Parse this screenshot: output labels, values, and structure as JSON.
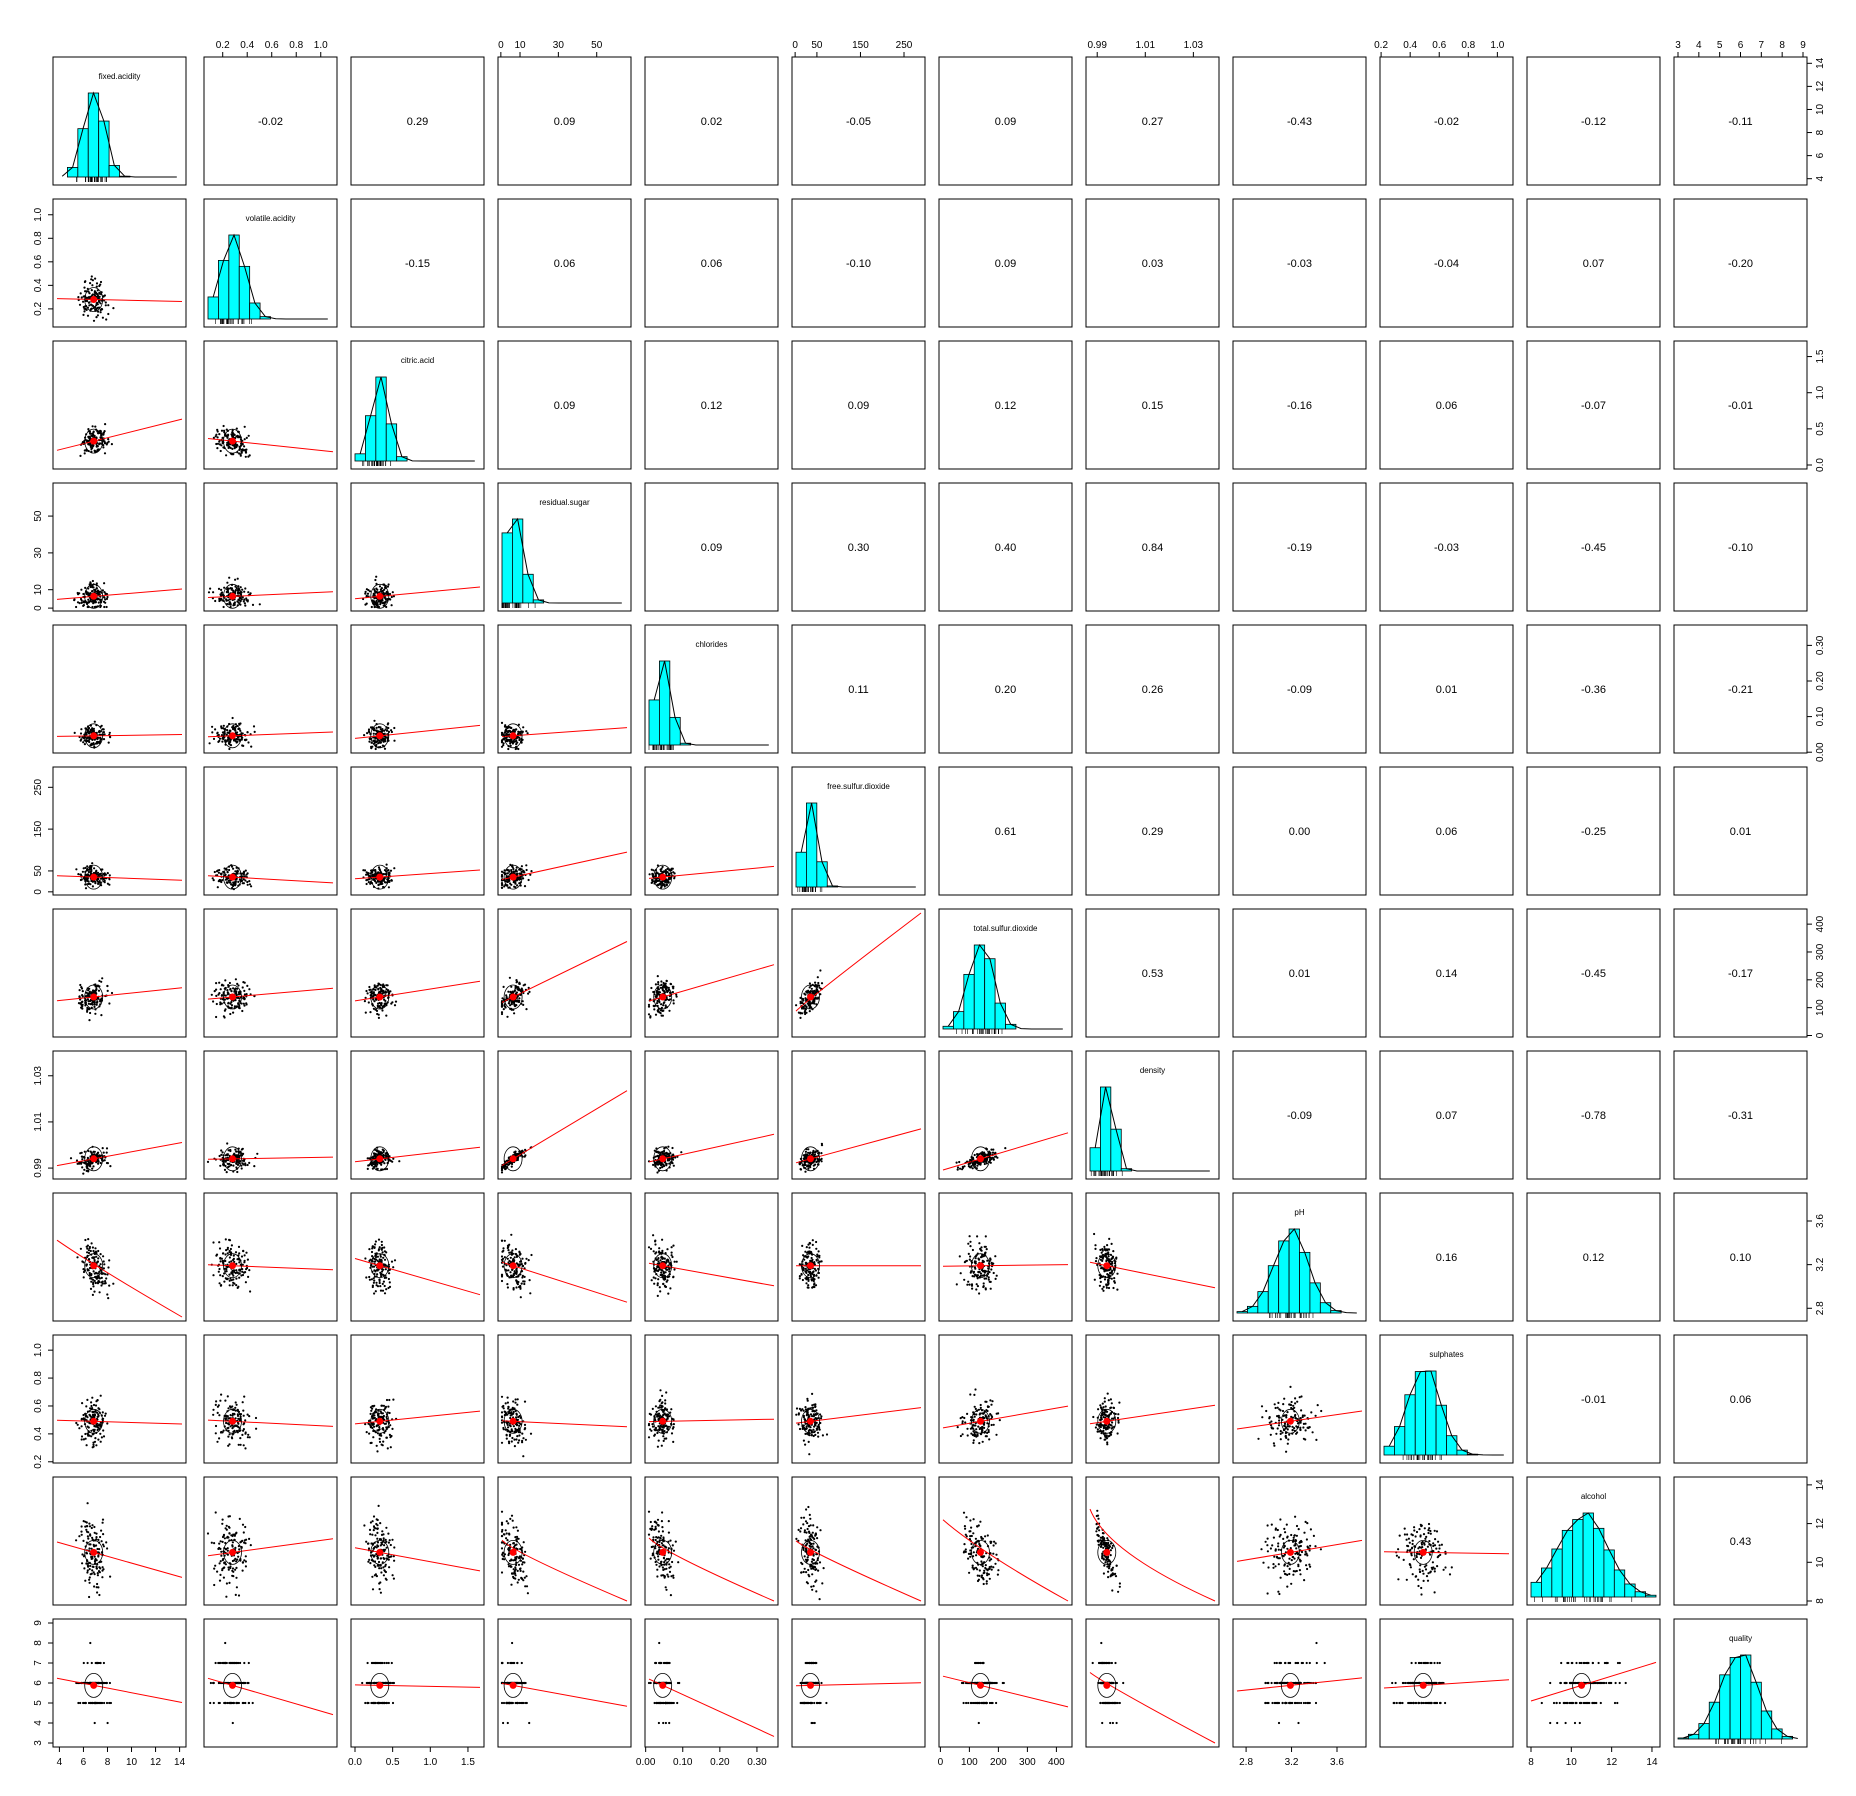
{
  "chart_data": {
    "type": "scatter-matrix",
    "title": "",
    "variables": [
      "fixed.acidity",
      "volatile.acidity",
      "citric.acid",
      "residual.sugar",
      "chlorides",
      "free.sulfur.dioxide",
      "total.sulfur.dioxide",
      "density",
      "pH",
      "sulphates",
      "alcohol",
      "quality"
    ],
    "diagonal": "histogram",
    "upper": "correlation",
    "lower": "scatter with loess line and data ellipse",
    "correlations": [
      [
        null,
        -0.02,
        0.29,
        0.09,
        0.02,
        -0.05,
        0.09,
        0.27,
        -0.43,
        -0.02,
        -0.12,
        -0.11
      ],
      [
        null,
        null,
        -0.15,
        0.06,
        0.06,
        -0.1,
        0.09,
        0.03,
        -0.03,
        -0.04,
        0.07,
        -0.2
      ],
      [
        null,
        null,
        null,
        0.09,
        0.12,
        0.09,
        0.12,
        0.15,
        -0.16,
        0.06,
        -0.07,
        -0.01
      ],
      [
        null,
        null,
        null,
        null,
        0.09,
        0.3,
        0.4,
        0.84,
        -0.19,
        -0.03,
        -0.45,
        -0.1
      ],
      [
        null,
        null,
        null,
        null,
        null,
        0.11,
        0.2,
        0.26,
        -0.09,
        0.01,
        -0.36,
        -0.21
      ],
      [
        null,
        null,
        null,
        null,
        null,
        null,
        0.61,
        0.29,
        0.0,
        0.06,
        -0.25,
        0.01
      ],
      [
        null,
        null,
        null,
        null,
        null,
        null,
        null,
        0.53,
        0.01,
        0.14,
        -0.45,
        -0.17
      ],
      [
        null,
        null,
        null,
        null,
        null,
        null,
        null,
        null,
        -0.09,
        0.07,
        -0.78,
        -0.31
      ],
      [
        null,
        null,
        null,
        null,
        null,
        null,
        null,
        null,
        null,
        0.16,
        0.12,
        0.1
      ],
      [
        null,
        null,
        null,
        null,
        null,
        null,
        null,
        null,
        null,
        null,
        -0.01,
        0.06
      ],
      [
        null,
        null,
        null,
        null,
        null,
        null,
        null,
        null,
        null,
        null,
        null,
        0.43
      ],
      [
        null,
        null,
        null,
        null,
        null,
        null,
        null,
        null,
        null,
        null,
        null,
        null
      ]
    ],
    "ranges": [
      [
        3.8,
        14.2
      ],
      [
        0.08,
        1.1
      ],
      [
        0,
        1.66
      ],
      [
        0.6,
        65.8
      ],
      [
        0.009,
        0.346
      ],
      [
        2,
        289
      ],
      [
        9,
        440
      ],
      [
        0.987,
        1.039
      ],
      [
        2.72,
        3.82
      ],
      [
        0.22,
        1.08
      ],
      [
        8,
        14.2
      ],
      [
        3,
        9
      ]
    ],
    "means": [
      6.85,
      0.28,
      0.33,
      6.39,
      0.046,
      35.3,
      138.4,
      0.994,
      3.19,
      0.49,
      10.51,
      5.88
    ],
    "sds": [
      0.84,
      0.1,
      0.12,
      5.07,
      0.022,
      17.0,
      42.5,
      0.003,
      0.15,
      0.11,
      1.23,
      0.89
    ],
    "axis_ticks": {
      "fixed.acidity": [
        "4",
        "6",
        "8",
        "10",
        "12",
        "14"
      ],
      "volatile.acidity": [
        "0.2",
        "0.4",
        "0.6",
        "0.8",
        "1.0"
      ],
      "citric.acid": [
        "0.0",
        "0.5",
        "1.0",
        "1.5"
      ],
      "residual.sugar": [
        "0",
        "10",
        "30",
        "50"
      ],
      "chlorides": [
        "0.00",
        "0.10",
        "0.20",
        "0.30"
      ],
      "free.sulfur.dioxide": [
        "0",
        "50",
        "150",
        "250"
      ],
      "total.sulfur.dioxide": [
        "0",
        "100",
        "200",
        "300",
        "400"
      ],
      "density": [
        "0.99",
        "1.01",
        "1.03"
      ],
      "pH": [
        "2.8",
        "3.2",
        "3.6"
      ],
      "sulphates": [
        "0.2",
        "0.4",
        "0.6",
        "0.8",
        "1.0"
      ],
      "alcohol": [
        "8",
        "10",
        "12",
        "14"
      ],
      "quality": [
        "3",
        "4",
        "5",
        "6",
        "7",
        "8",
        "9"
      ]
    },
    "histogram_fill": "#00ffff",
    "smooth_color": "#ff0000",
    "point_color": "#000000"
  }
}
